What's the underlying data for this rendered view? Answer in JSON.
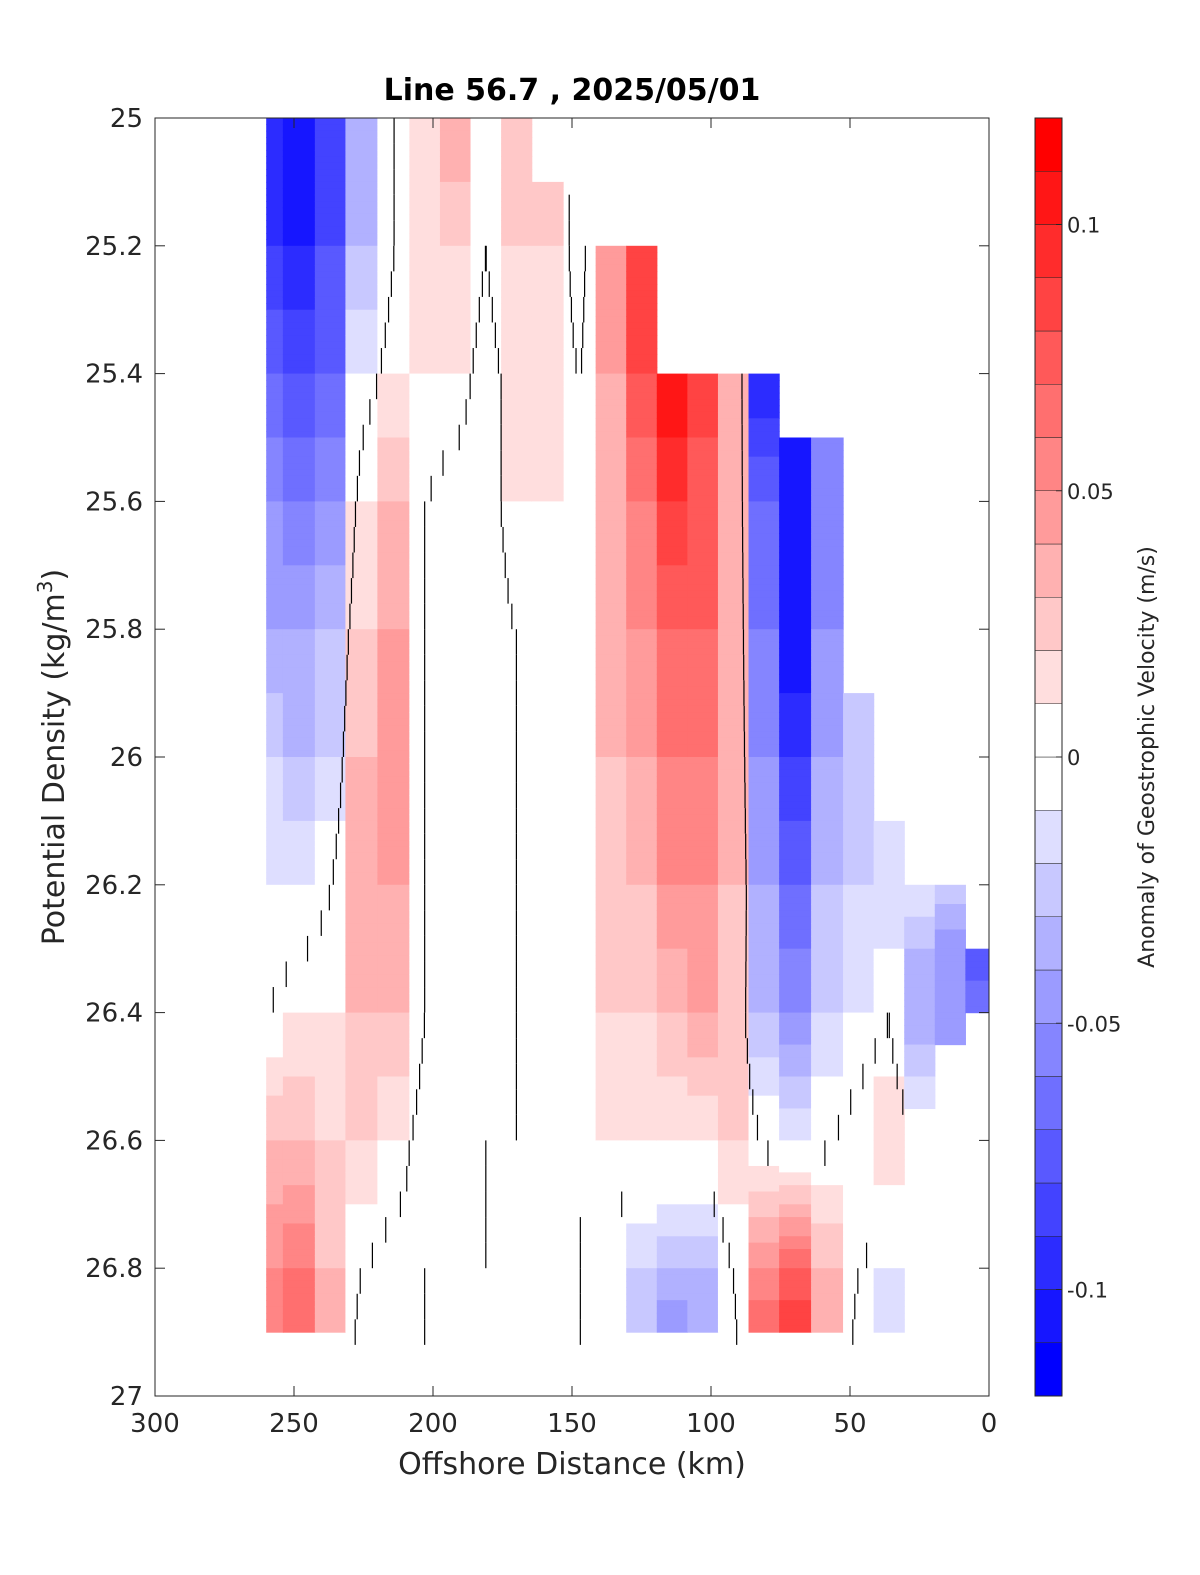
{
  "chart_data": {
    "type": "heatmap",
    "subtype": "filled-contour",
    "title": "Line 56.7 , 2025/05/01",
    "xlabel": "Offshore Distance (km)",
    "ylabel_main": "Potential Density (kg/m",
    "ylabel_sup": "3",
    "ylabel_tail": ")",
    "xlim": [
      300,
      0
    ],
    "ylim": [
      25,
      27
    ],
    "x_reversed": true,
    "y_reversed": true,
    "xticks": [
      300,
      250,
      200,
      150,
      100,
      50,
      0
    ],
    "yticks": [
      25,
      25.2,
      25.4,
      25.6,
      25.8,
      26,
      26.2,
      26.4,
      26.6,
      26.8,
      27
    ],
    "ytick_labels": [
      "25",
      "25.2",
      "25.4",
      "25.6",
      "25.8",
      "26",
      "26.2",
      "26.4",
      "26.6",
      "26.8",
      "27"
    ],
    "grid": false,
    "colorbar": {
      "label": "Anomaly of Geostrophic Velocity (m/s)",
      "range": [
        -0.12,
        0.12
      ],
      "step": 0.01,
      "ticks": [
        0.1,
        0.05,
        0,
        -0.05,
        -0.1
      ],
      "tick_labels": [
        "0.1",
        "0.05",
        "0",
        "-0.05",
        "-0.1"
      ],
      "colors": {
        "negative": "#0000ff",
        "zero": "#ffffff",
        "positive": "#ff0000"
      }
    },
    "zero_contour_color": "#000000",
    "columns_km": [
      260,
      248,
      237,
      226,
      214,
      203,
      192,
      181,
      170,
      159,
      147,
      136,
      125,
      114,
      103,
      92,
      81,
      70,
      58,
      47,
      36,
      25,
      14,
      3
    ],
    "bottom_density": [
      26.9,
      26.9,
      26.9,
      26.9,
      26.9,
      26.9,
      26.9,
      26.9,
      26.9,
      26.9,
      26.9,
      26.9,
      26.9,
      26.9,
      26.9,
      26.9,
      26.9,
      26.9,
      26.9,
      26.9,
      26.9,
      26.55,
      26.45,
      26.4
    ],
    "top_density": [
      25.0,
      25.0,
      25.0,
      25.0,
      25.0,
      25.0,
      25.0,
      25.0,
      25.0,
      25.1,
      25.1,
      25.2,
      25.2,
      25.4,
      25.4,
      25.4,
      25.4,
      25.5,
      25.5,
      25.9,
      26.1,
      26.2,
      26.2,
      26.3
    ],
    "velocity_profiles": [
      {
        "x": 260,
        "density": [
          25.0,
          25.2,
          25.4,
          25.6,
          25.8,
          26.0,
          26.2,
          26.4,
          26.6,
          26.8,
          26.9
        ],
        "value": [
          -0.1,
          -0.09,
          -0.07,
          -0.05,
          -0.04,
          -0.02,
          -0.01,
          0.0,
          0.03,
          0.05,
          0.06
        ]
      },
      {
        "x": 248,
        "density": [
          25.0,
          25.2,
          25.4,
          25.6,
          25.8,
          26.0,
          26.2,
          26.4,
          26.6,
          26.8,
          26.9
        ],
        "value": [
          -0.11,
          -0.1,
          -0.08,
          -0.06,
          -0.04,
          -0.03,
          -0.01,
          0.01,
          0.03,
          0.06,
          0.07
        ]
      },
      {
        "x": 237,
        "density": [
          25.0,
          25.2,
          25.4,
          25.6,
          25.8,
          26.0,
          26.2,
          26.4,
          26.6,
          26.8,
          26.9
        ],
        "value": [
          -0.09,
          -0.08,
          -0.07,
          -0.05,
          -0.03,
          -0.02,
          0.0,
          0.01,
          0.02,
          0.03,
          0.04
        ]
      },
      {
        "x": 226,
        "density": [
          25.0,
          25.2,
          25.4,
          25.6,
          25.8,
          26.0,
          26.2,
          26.4,
          26.6,
          26.8,
          26.9
        ],
        "value": [
          -0.04,
          -0.03,
          -0.01,
          0.01,
          0.02,
          0.03,
          0.03,
          0.03,
          0.02,
          0.0,
          -0.01
        ]
      },
      {
        "x": 214,
        "density": [
          25.0,
          25.2,
          25.4,
          25.6,
          25.8,
          26.0,
          26.2,
          26.4,
          26.6,
          26.8,
          26.9
        ],
        "value": [
          0.0,
          0.0,
          0.01,
          0.03,
          0.04,
          0.04,
          0.04,
          0.03,
          0.01,
          -0.01,
          -0.01
        ]
      },
      {
        "x": 203,
        "density": [
          25.0,
          25.2,
          25.4,
          25.6,
          25.8,
          26.0,
          26.2,
          26.4,
          26.6,
          26.8,
          26.9
        ],
        "value": [
          0.01,
          0.01,
          0.01,
          0.0,
          0.0,
          0.0,
          0.0,
          0.0,
          -0.01,
          0.0,
          0.0
        ]
      },
      {
        "x": 192,
        "density": [
          25.0,
          25.2,
          25.4,
          25.6,
          25.8,
          26.0,
          26.2,
          26.4,
          26.6,
          26.8,
          26.9
        ],
        "value": [
          0.04,
          0.02,
          0.01,
          -0.01,
          -0.01,
          -0.01,
          -0.01,
          -0.01,
          -0.01,
          0.0,
          0.0
        ]
      },
      {
        "x": 181,
        "density": [
          25.0,
          25.2,
          25.4,
          25.6,
          25.8,
          26.0,
          26.2,
          26.4,
          26.6,
          26.8,
          26.9
        ],
        "value": [
          0.01,
          0.0,
          -0.01,
          -0.01,
          -0.01,
          -0.01,
          -0.01,
          -0.01,
          0.0,
          0.0,
          0.0
        ]
      },
      {
        "x": 170,
        "density": [
          25.0,
          25.2,
          25.4,
          25.6,
          25.8,
          26.0,
          26.2,
          26.4,
          26.6,
          26.8,
          26.9
        ],
        "value": [
          0.03,
          0.02,
          0.01,
          0.01,
          0.0,
          0.0,
          0.0,
          0.0,
          0.0,
          0.0,
          0.0
        ]
      },
      {
        "x": 159,
        "density": [
          25.1,
          25.2,
          25.4,
          25.6,
          25.8,
          26.0,
          26.2,
          26.4,
          26.6,
          26.8,
          26.9
        ],
        "value": [
          0.02,
          0.02,
          0.01,
          0.01,
          0.0,
          0.0,
          0.0,
          0.0,
          0.0,
          0.0,
          0.0
        ]
      },
      {
        "x": 147,
        "density": [
          25.1,
          25.2,
          25.4,
          25.6,
          25.8,
          26.0,
          26.2,
          26.4,
          26.6,
          26.8,
          26.9
        ],
        "value": [
          -0.01,
          -0.01,
          0.0,
          0.0,
          0.0,
          0.0,
          0.0,
          0.0,
          0.0,
          0.0,
          0.0
        ]
      },
      {
        "x": 136,
        "density": [
          25.2,
          25.4,
          25.6,
          25.8,
          26.0,
          26.2,
          26.4,
          26.6,
          26.8,
          26.9
        ],
        "value": [
          0.05,
          0.04,
          0.03,
          0.03,
          0.03,
          0.02,
          0.02,
          0.01,
          -0.01,
          -0.01
        ]
      },
      {
        "x": 125,
        "density": [
          25.2,
          25.4,
          25.6,
          25.8,
          26.0,
          26.2,
          26.4,
          26.6,
          26.8,
          26.9
        ],
        "value": [
          0.08,
          0.08,
          0.06,
          0.05,
          0.04,
          0.03,
          0.02,
          0.01,
          -0.02,
          -0.03
        ]
      },
      {
        "x": 114,
        "density": [
          25.4,
          25.6,
          25.8,
          26.0,
          26.2,
          26.4,
          26.6,
          26.8,
          26.9
        ],
        "value": [
          0.11,
          0.09,
          0.07,
          0.06,
          0.05,
          0.03,
          0.01,
          -0.03,
          -0.05
        ]
      },
      {
        "x": 103,
        "density": [
          25.4,
          25.6,
          25.8,
          26.0,
          26.2,
          26.4,
          26.6,
          26.8,
          26.9
        ],
        "value": [
          0.09,
          0.07,
          0.07,
          0.06,
          0.05,
          0.04,
          0.01,
          -0.03,
          -0.04
        ]
      },
      {
        "x": 92,
        "density": [
          25.4,
          25.6,
          25.8,
          26.0,
          26.2,
          26.4,
          26.6,
          26.8,
          26.9
        ],
        "value": [
          0.04,
          0.03,
          0.03,
          0.03,
          0.03,
          0.02,
          0.02,
          0.0,
          -0.01
        ]
      },
      {
        "x": 81,
        "density": [
          25.4,
          25.6,
          25.8,
          26.0,
          26.2,
          26.4,
          26.6,
          26.8,
          26.9
        ],
        "value": [
          -0.1,
          -0.07,
          -0.06,
          -0.05,
          -0.04,
          -0.03,
          0.0,
          0.05,
          0.07
        ]
      },
      {
        "x": 70,
        "density": [
          25.5,
          25.6,
          25.8,
          26.0,
          26.2,
          26.4,
          26.6,
          26.8,
          26.9
        ],
        "value": [
          -0.11,
          -0.11,
          -0.11,
          -0.09,
          -0.07,
          -0.05,
          -0.01,
          0.07,
          0.09
        ]
      },
      {
        "x": 58,
        "density": [
          25.5,
          25.6,
          25.8,
          26.0,
          26.2,
          26.4,
          26.6,
          26.8,
          26.9
        ],
        "value": [
          -0.05,
          -0.06,
          -0.05,
          -0.04,
          -0.03,
          -0.02,
          0.0,
          0.03,
          0.04
        ]
      },
      {
        "x": 47,
        "density": [
          25.9,
          26.0,
          26.2,
          26.4,
          26.6,
          26.8,
          26.9
        ],
        "value": [
          -0.03,
          -0.03,
          -0.02,
          -0.01,
          0.01,
          0.0,
          -0.01
        ]
      },
      {
        "x": 36,
        "density": [
          26.1,
          26.2,
          26.4,
          26.6,
          26.8,
          26.9
        ],
        "value": [
          -0.02,
          -0.02,
          0.0,
          0.02,
          -0.01,
          -0.02
        ]
      },
      {
        "x": 25,
        "density": [
          26.2,
          26.3,
          26.4,
          26.55
        ],
        "value": [
          -0.01,
          -0.03,
          -0.04,
          -0.01
        ]
      },
      {
        "x": 14,
        "density": [
          26.2,
          26.3,
          26.45
        ],
        "value": [
          -0.02,
          -0.05,
          -0.05
        ]
      },
      {
        "x": 3,
        "density": [
          26.3,
          26.4
        ],
        "value": [
          -0.08,
          -0.06
        ]
      }
    ]
  }
}
